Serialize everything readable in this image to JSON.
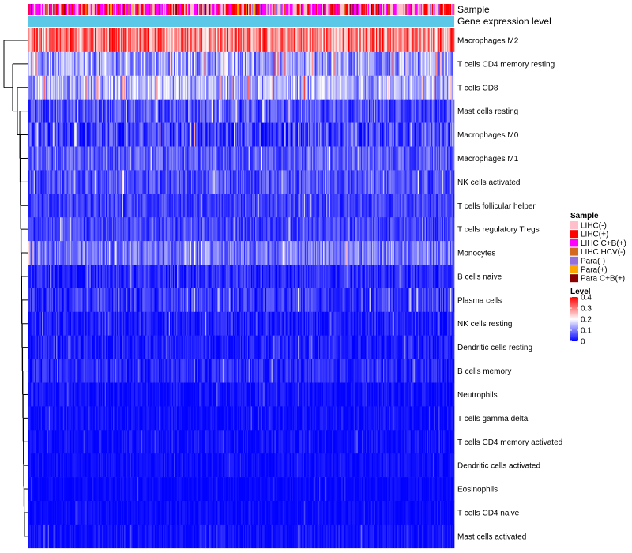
{
  "chart_data": {
    "type": "heatmap",
    "title": "",
    "annotation_rows": [
      {
        "name": "Sample"
      },
      {
        "name": "Gene expression level"
      }
    ],
    "rows": [
      {
        "label": "Macrophages M2",
        "mean": 0.3,
        "spread": 0.12
      },
      {
        "label": "T cells CD4 memory resting",
        "mean": 0.12,
        "spread": 0.1
      },
      {
        "label": "T cells CD8",
        "mean": 0.13,
        "spread": 0.09
      },
      {
        "label": "Mast cells resting",
        "mean": 0.06,
        "spread": 0.07
      },
      {
        "label": "Macrophages M0",
        "mean": 0.05,
        "spread": 0.08
      },
      {
        "label": "Macrophages M1",
        "mean": 0.07,
        "spread": 0.06
      },
      {
        "label": "NK cells activated",
        "mean": 0.06,
        "spread": 0.06
      },
      {
        "label": "T cells follicular helper",
        "mean": 0.05,
        "spread": 0.05
      },
      {
        "label": "T cells regulatory  Tregs",
        "mean": 0.05,
        "spread": 0.05
      },
      {
        "label": "Monocytes",
        "mean": 0.09,
        "spread": 0.07
      },
      {
        "label": "B cells naive",
        "mean": 0.03,
        "spread": 0.05
      },
      {
        "label": "Plasma cells",
        "mean": 0.04,
        "spread": 0.06
      },
      {
        "label": "NK cells resting",
        "mean": 0.02,
        "spread": 0.05
      },
      {
        "label": "Dendritic cells resting",
        "mean": 0.02,
        "spread": 0.04
      },
      {
        "label": "B cells memory",
        "mean": 0.03,
        "spread": 0.04
      },
      {
        "label": "Neutrophils",
        "mean": 0.01,
        "spread": 0.03
      },
      {
        "label": "T cells gamma delta",
        "mean": 0.01,
        "spread": 0.03
      },
      {
        "label": "T cells CD4 memory activated",
        "mean": 0.01,
        "spread": 0.03
      },
      {
        "label": "Dendritic cells activated",
        "mean": 0.01,
        "spread": 0.02
      },
      {
        "label": "Eosinophils",
        "mean": 0.005,
        "spread": 0.02
      },
      {
        "label": "T cells CD4 naive",
        "mean": 0.005,
        "spread": 0.02
      },
      {
        "label": "Mast cells activated",
        "mean": 0.01,
        "spread": 0.03
      }
    ],
    "n_samples": 420,
    "sample_group_weights": {
      "LIHC(-)": 0.3,
      "LIHC(+)": 0.25,
      "LIHC C+B(+)": 0.3,
      "LIHC HCV(-)": 0.03,
      "Para(-)": 0.05,
      "Para(+)": 0.03,
      "Para C+B(+)": 0.04
    },
    "value_range": [
      0,
      0.4
    ],
    "legends": {
      "sample": {
        "title": "Sample",
        "items": [
          {
            "label": "LIHC(-)",
            "color": "#FFC0CB"
          },
          {
            "label": "LIHC(+)",
            "color": "#FF0000"
          },
          {
            "label": "LIHC C+B(+)",
            "color": "#FF00FF"
          },
          {
            "label": "LIHC HCV(-)",
            "color": "#D2691E"
          },
          {
            "label": "Para(-)",
            "color": "#9370DB"
          },
          {
            "label": "Para(+)",
            "color": "#FFA500"
          },
          {
            "label": "Para C+B(+)",
            "color": "#8B0000"
          }
        ]
      },
      "level": {
        "title": "Level",
        "ticks": [
          "0.4",
          "0.3",
          "0.2",
          "0.1",
          "0"
        ],
        "colors": [
          "#FF0000",
          "#FFFFFF",
          "#0000FF"
        ]
      }
    },
    "gene_expression_color": "#5BC8E8"
  }
}
